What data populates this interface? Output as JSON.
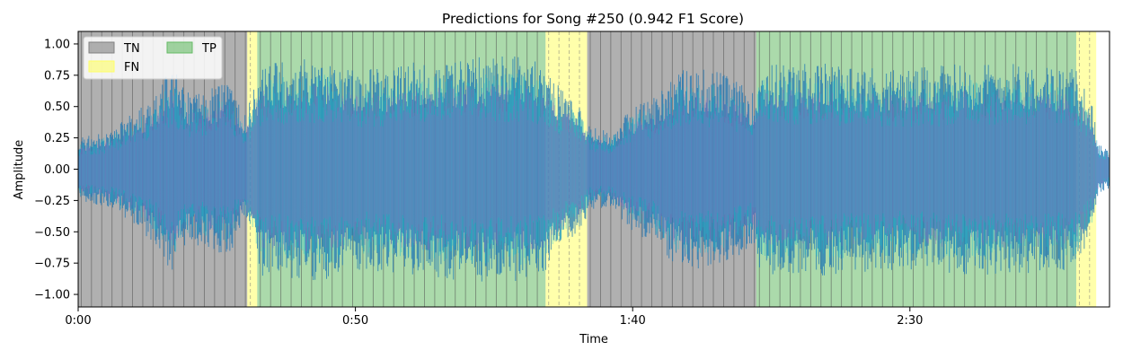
{
  "chart_data": {
    "type": "area",
    "title": "Predictions for Song #250 (0.942 F1 Score)",
    "xlabel": "Time",
    "ylabel": "Amplitude",
    "xlim": [
      0,
      186
    ],
    "ylim": [
      -1.1,
      1.1
    ],
    "x_ticks": [
      {
        "value": 0,
        "label": "0:00"
      },
      {
        "value": 50,
        "label": "0:50"
      },
      {
        "value": 100,
        "label": "1:40"
      },
      {
        "value": 150,
        "label": "2:30"
      }
    ],
    "y_ticks": [
      {
        "value": 1.0,
        "label": "1.00"
      },
      {
        "value": 0.75,
        "label": "0.75"
      },
      {
        "value": 0.5,
        "label": "0.50"
      },
      {
        "value": 0.25,
        "label": "0.25"
      },
      {
        "value": 0.0,
        "label": "0.00"
      },
      {
        "value": -0.25,
        "label": "−0.25"
      },
      {
        "value": -0.5,
        "label": "−0.50"
      },
      {
        "value": -0.75,
        "label": "−0.75"
      },
      {
        "value": -1.0,
        "label": "−1.00"
      }
    ],
    "legend": {
      "placement": "upper-left",
      "entries": [
        {
          "key": "TN",
          "label": "TN",
          "color": "#808080"
        },
        {
          "key": "FN",
          "label": "FN",
          "color": "#ffff66"
        },
        {
          "key": "TP",
          "label": "TP",
          "color": "#66bb66"
        }
      ]
    },
    "segments": [
      {
        "class": "TN",
        "start": 0.0,
        "end": 30.5
      },
      {
        "class": "FN",
        "start": 30.5,
        "end": 32.3
      },
      {
        "class": "TP",
        "start": 32.3,
        "end": 84.3
      },
      {
        "class": "FN",
        "start": 84.3,
        "end": 91.8
      },
      {
        "class": "TN",
        "start": 91.8,
        "end": 122.3
      },
      {
        "class": "TP",
        "start": 122.3,
        "end": 180.0
      },
      {
        "class": "FN",
        "start": 180.0,
        "end": 183.6
      }
    ],
    "beat_spacing": 1.85,
    "waveform": {
      "series": [
        {
          "role": "primary",
          "color": "#1f77b4"
        },
        {
          "role": "overlay-1",
          "color": "#17becf"
        },
        {
          "role": "overlay-2",
          "color": "#9467bd"
        }
      ],
      "envelope": [
        [
          0,
          0.25
        ],
        [
          5,
          0.3
        ],
        [
          10,
          0.45
        ],
        [
          14,
          0.6
        ],
        [
          17,
          0.85
        ],
        [
          20,
          0.6
        ],
        [
          24,
          0.65
        ],
        [
          27,
          0.7
        ],
        [
          30,
          0.45
        ],
        [
          31,
          0.55
        ],
        [
          33,
          0.85
        ],
        [
          45,
          0.9
        ],
        [
          50,
          0.8
        ],
        [
          60,
          0.85
        ],
        [
          70,
          0.9
        ],
        [
          80,
          0.9
        ],
        [
          84,
          0.85
        ],
        [
          88,
          0.6
        ],
        [
          91,
          0.5
        ],
        [
          92,
          0.35
        ],
        [
          96,
          0.3
        ],
        [
          100,
          0.5
        ],
        [
          104,
          0.6
        ],
        [
          108,
          0.8
        ],
        [
          115,
          0.8
        ],
        [
          119,
          0.7
        ],
        [
          122,
          0.6
        ],
        [
          123,
          0.85
        ],
        [
          135,
          0.85
        ],
        [
          150,
          0.8
        ],
        [
          160,
          0.85
        ],
        [
          170,
          0.85
        ],
        [
          180,
          0.8
        ],
        [
          183,
          0.5
        ],
        [
          184,
          0.2
        ],
        [
          186,
          0.15
        ]
      ]
    }
  }
}
